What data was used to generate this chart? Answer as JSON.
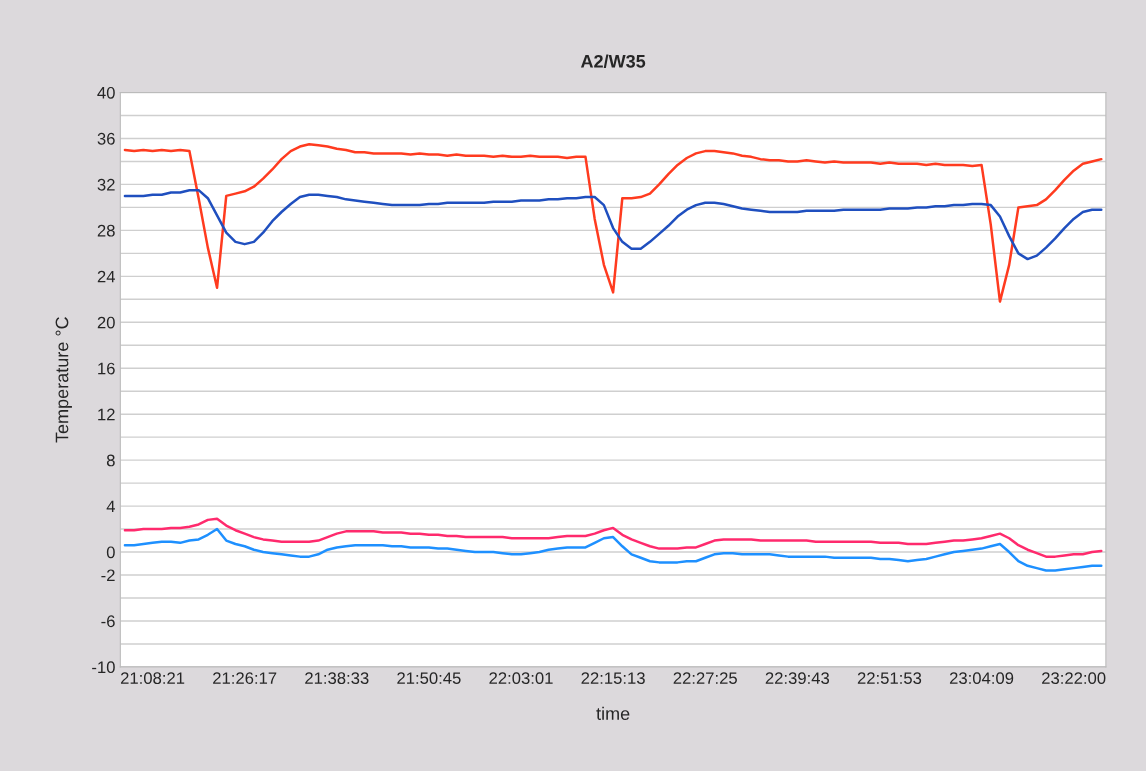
{
  "chart_data": {
    "type": "line",
    "title": "A2/W35",
    "xlabel": "time",
    "ylabel": "Temperature °C",
    "categories": [
      null,
      null,
      null,
      "21:08:21",
      null,
      null,
      null,
      null,
      null,
      null,
      null,
      null,
      null,
      "21:26:17",
      null,
      null,
      null,
      null,
      null,
      null,
      null,
      null,
      null,
      "21:38:33",
      null,
      null,
      null,
      null,
      null,
      null,
      null,
      null,
      null,
      "21:50:45",
      null,
      null,
      null,
      null,
      null,
      null,
      null,
      null,
      null,
      "22:03:01",
      null,
      null,
      null,
      null,
      null,
      null,
      null,
      null,
      null,
      "22:15:13",
      null,
      null,
      null,
      null,
      null,
      null,
      null,
      null,
      null,
      "22:27:25",
      null,
      null,
      null,
      null,
      null,
      null,
      null,
      null,
      null,
      "22:39:43",
      null,
      null,
      null,
      null,
      null,
      null,
      null,
      null,
      null,
      "22:51:53",
      null,
      null,
      null,
      null,
      null,
      null,
      null,
      null,
      null,
      "23:04:09",
      null,
      null,
      null,
      null,
      null,
      null,
      null,
      null,
      null,
      "23:22:00",
      null,
      null,
      null
    ],
    "series": [
      {
        "color": "#ff3b1f",
        "values": [
          35.0,
          34.9,
          35.0,
          34.9,
          35.0,
          34.9,
          35.0,
          34.9,
          30.8,
          26.5,
          23.0,
          31.0,
          31.2,
          31.4,
          31.8,
          32.5,
          33.3,
          34.2,
          34.9,
          35.3,
          35.5,
          35.4,
          35.3,
          35.1,
          35.0,
          34.8,
          34.8,
          34.7,
          34.7,
          34.7,
          34.7,
          34.6,
          34.7,
          34.6,
          34.6,
          34.5,
          34.6,
          34.5,
          34.5,
          34.5,
          34.4,
          34.5,
          34.4,
          34.4,
          34.5,
          34.4,
          34.4,
          34.4,
          34.3,
          34.4,
          34.4,
          29.0,
          25.0,
          22.6,
          30.8,
          30.8,
          30.9,
          31.2,
          32.0,
          32.9,
          33.7,
          34.3,
          34.7,
          34.9,
          34.9,
          34.8,
          34.7,
          34.5,
          34.4,
          34.2,
          34.1,
          34.1,
          34.0,
          34.0,
          34.1,
          34.0,
          33.9,
          34.0,
          33.9,
          33.9,
          33.9,
          33.9,
          33.8,
          33.9,
          33.8,
          33.8,
          33.8,
          33.7,
          33.8,
          33.7,
          33.7,
          33.7,
          33.6,
          33.7,
          28.5,
          21.8,
          25.0,
          30.0,
          30.1,
          30.2,
          30.7,
          31.5,
          32.4,
          33.2,
          33.8,
          34.0,
          34.2
        ]
      },
      {
        "color": "#1f4fbf",
        "values": [
          31.0,
          31.0,
          31.0,
          31.1,
          31.1,
          31.3,
          31.3,
          31.5,
          31.5,
          30.8,
          29.3,
          27.8,
          27.0,
          26.8,
          27.0,
          27.8,
          28.8,
          29.6,
          30.3,
          30.9,
          31.1,
          31.1,
          31.0,
          30.9,
          30.7,
          30.6,
          30.5,
          30.4,
          30.3,
          30.2,
          30.2,
          30.2,
          30.2,
          30.3,
          30.3,
          30.4,
          30.4,
          30.4,
          30.4,
          30.4,
          30.5,
          30.5,
          30.5,
          30.6,
          30.6,
          30.6,
          30.7,
          30.7,
          30.8,
          30.8,
          30.9,
          30.9,
          30.2,
          28.2,
          27.0,
          26.4,
          26.4,
          27.0,
          27.7,
          28.4,
          29.2,
          29.8,
          30.2,
          30.4,
          30.4,
          30.3,
          30.1,
          29.9,
          29.8,
          29.7,
          29.6,
          29.6,
          29.6,
          29.6,
          29.7,
          29.7,
          29.7,
          29.7,
          29.8,
          29.8,
          29.8,
          29.8,
          29.8,
          29.9,
          29.9,
          29.9,
          30.0,
          30.0,
          30.1,
          30.1,
          30.2,
          30.2,
          30.3,
          30.3,
          30.2,
          29.2,
          27.5,
          26.0,
          25.5,
          25.8,
          26.5,
          27.3,
          28.2,
          29.0,
          29.6,
          29.8,
          29.8
        ]
      },
      {
        "color": "#ff2a6d",
        "values": [
          1.9,
          1.9,
          2.0,
          2.0,
          2.0,
          2.1,
          2.1,
          2.2,
          2.4,
          2.8,
          2.9,
          2.3,
          1.9,
          1.6,
          1.3,
          1.1,
          1.0,
          0.9,
          0.9,
          0.9,
          0.9,
          1.0,
          1.3,
          1.6,
          1.8,
          1.8,
          1.8,
          1.8,
          1.7,
          1.7,
          1.7,
          1.6,
          1.6,
          1.5,
          1.5,
          1.4,
          1.4,
          1.3,
          1.3,
          1.3,
          1.3,
          1.3,
          1.2,
          1.2,
          1.2,
          1.2,
          1.2,
          1.3,
          1.4,
          1.4,
          1.4,
          1.6,
          1.9,
          2.1,
          1.5,
          1.1,
          0.8,
          0.5,
          0.3,
          0.3,
          0.3,
          0.4,
          0.4,
          0.7,
          1.0,
          1.1,
          1.1,
          1.1,
          1.1,
          1.0,
          1.0,
          1.0,
          1.0,
          1.0,
          1.0,
          0.9,
          0.9,
          0.9,
          0.9,
          0.9,
          0.9,
          0.9,
          0.8,
          0.8,
          0.8,
          0.7,
          0.7,
          0.7,
          0.8,
          0.9,
          1.0,
          1.0,
          1.1,
          1.2,
          1.4,
          1.6,
          1.2,
          0.6,
          0.2,
          -0.1,
          -0.4,
          -0.4,
          -0.3,
          -0.2,
          -0.2,
          0.0,
          0.1
        ]
      },
      {
        "color": "#1e90ff",
        "values": [
          0.6,
          0.6,
          0.7,
          0.8,
          0.9,
          0.9,
          0.8,
          1.0,
          1.1,
          1.5,
          2.0,
          1.0,
          0.7,
          0.5,
          0.2,
          0.0,
          -0.1,
          -0.2,
          -0.3,
          -0.4,
          -0.4,
          -0.2,
          0.2,
          0.4,
          0.5,
          0.6,
          0.6,
          0.6,
          0.6,
          0.5,
          0.5,
          0.4,
          0.4,
          0.4,
          0.3,
          0.3,
          0.2,
          0.1,
          0.0,
          0.0,
          0.0,
          -0.1,
          -0.2,
          -0.2,
          -0.1,
          0.0,
          0.2,
          0.3,
          0.4,
          0.4,
          0.4,
          0.8,
          1.2,
          1.3,
          0.5,
          -0.2,
          -0.5,
          -0.8,
          -0.9,
          -0.9,
          -0.9,
          -0.8,
          -0.8,
          -0.5,
          -0.2,
          -0.1,
          -0.1,
          -0.2,
          -0.2,
          -0.2,
          -0.2,
          -0.3,
          -0.4,
          -0.4,
          -0.4,
          -0.4,
          -0.4,
          -0.5,
          -0.5,
          -0.5,
          -0.5,
          -0.5,
          -0.6,
          -0.6,
          -0.7,
          -0.8,
          -0.7,
          -0.6,
          -0.4,
          -0.2,
          0.0,
          0.1,
          0.2,
          0.3,
          0.5,
          0.7,
          0.0,
          -0.8,
          -1.2,
          -1.4,
          -1.6,
          -1.6,
          -1.5,
          -1.4,
          -1.3,
          -1.2,
          -1.2
        ]
      }
    ],
    "ylim": [
      -10,
      40
    ],
    "yticks": [
      40,
      {
        "value": 38,
        "label": null
      },
      36,
      {
        "value": 34,
        "label": null
      },
      32,
      {
        "value": 30,
        "label": null
      },
      28,
      {
        "value": 26,
        "label": null
      },
      24,
      {
        "value": 22,
        "label": null
      },
      20,
      {
        "value": 18,
        "label": null
      },
      16,
      {
        "value": 14,
        "label": null
      },
      12,
      {
        "value": 10,
        "label": null
      },
      8,
      {
        "value": 6,
        "label": null
      },
      4,
      {
        "value": 2,
        "label": null
      },
      0,
      -2,
      {
        "value": -4,
        "label": null
      },
      -6,
      {
        "value": -8,
        "label": null
      },
      -10
    ],
    "grid": "y",
    "marker": "none",
    "line_style": "solid"
  }
}
